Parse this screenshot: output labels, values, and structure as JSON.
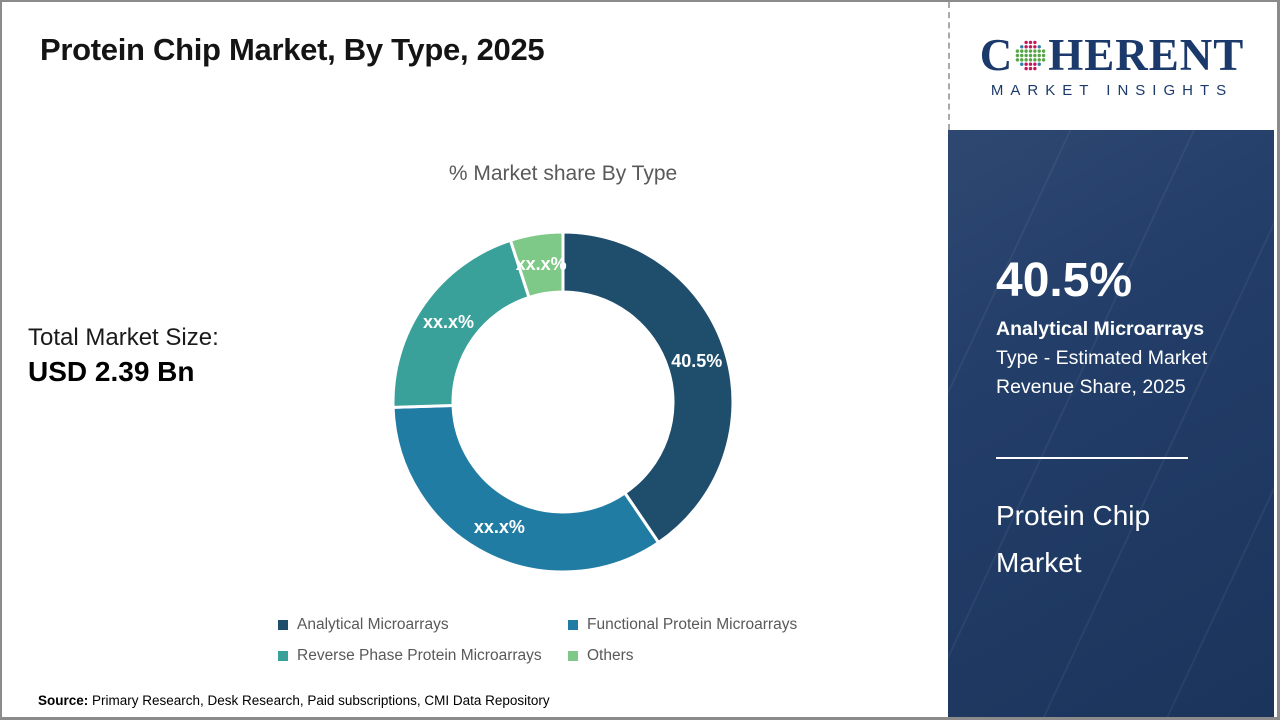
{
  "page": {
    "title": "Protein Chip Market, By Type, 2025",
    "source": {
      "label": "Source:",
      "text": " Primary Research, Desk Research, Paid subscriptions, CMI Data Repository"
    }
  },
  "logo": {
    "name_start": "C",
    "name_end": "HERENT",
    "subtitle": "MARKET INSIGHTS",
    "navy": "#1b3a6b",
    "globe_colors": {
      "green": "#56a546",
      "crimson": "#c2175b",
      "teal": "#2c7fa8"
    }
  },
  "left_panel": {
    "label": "Total Market Size:",
    "value": "USD 2.39 Bn"
  },
  "sidebar": {
    "bg": "#1e3a66",
    "stat_value": "40.5%",
    "stat_caption_bold": "Analytical Microarrays",
    "stat_caption_line2": "Type - Estimated Market",
    "stat_caption_line3": "Revenue Share, 2025",
    "market_line1": "Protein Chip",
    "market_line2": "Market"
  },
  "chart_data": {
    "type": "pie",
    "donut": true,
    "title": "% Market share By Type",
    "categories": [
      "Analytical Microarrays",
      "Functional Protein Microarrays",
      "Reverse Phase Protein Microarrays",
      "Others"
    ],
    "values": [
      40.5,
      34.0,
      20.5,
      5.0
    ],
    "slice_labels": [
      "40.5%",
      "xx.x%",
      "xx.x%",
      "xx.x%"
    ],
    "colors": [
      "#1f4e6d",
      "#217ca3",
      "#3aa09a",
      "#7ec988"
    ],
    "start_angle_deg": 0,
    "direction": "clockwise",
    "outer_radius_px": 170,
    "inner_radius_px": 110,
    "separator_color": "#ffffff",
    "legend_position": "bottom"
  }
}
